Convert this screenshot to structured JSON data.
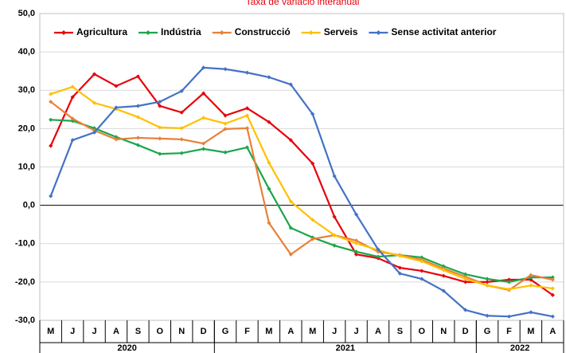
{
  "chart_data": {
    "type": "line",
    "title": "Taxa de variació interanual",
    "categories": [
      "M",
      "J",
      "J",
      "A",
      "S",
      "O",
      "N",
      "D",
      "G",
      "F",
      "M",
      "A",
      "M",
      "J",
      "J",
      "A",
      "S",
      "O",
      "N",
      "D",
      "G",
      "F",
      "M",
      "A"
    ],
    "year_groups": [
      {
        "label": "2020",
        "count": 8
      },
      {
        "label": "2021",
        "count": 12
      },
      {
        "label": "2022",
        "count": 4
      }
    ],
    "series": [
      {
        "name": "Agricultura",
        "color": "#e8000b",
        "values": [
          15.5,
          28.2,
          34.2,
          31.1,
          33.6,
          25.9,
          24.2,
          29.2,
          23.4,
          25.3,
          21.7,
          17.0,
          10.9,
          -3.0,
          -12.8,
          -13.8,
          -16.3,
          -17.1,
          -18.4,
          -20.0,
          -20.0,
          -19.4,
          -19.4,
          -23.4
        ]
      },
      {
        "name": "Indústria",
        "color": "#1aa64a",
        "values": [
          22.3,
          22.0,
          20.1,
          17.8,
          15.7,
          13.4,
          13.6,
          14.7,
          13.8,
          15.1,
          4.3,
          -5.9,
          -8.4,
          -10.5,
          -12.1,
          -13.4,
          -13.0,
          -13.6,
          -15.9,
          -18.0,
          -19.2,
          -20.0,
          -18.8,
          -18.8
        ]
      },
      {
        "name": "Construcció",
        "color": "#e8803a",
        "values": [
          27.0,
          22.6,
          19.5,
          17.2,
          17.6,
          17.4,
          17.2,
          16.1,
          19.9,
          20.1,
          -4.6,
          -12.8,
          -8.8,
          -7.8,
          -9.2,
          -12.1,
          -13.0,
          -14.2,
          -16.5,
          -18.6,
          -20.9,
          -22.1,
          -18.2,
          -19.4
        ]
      },
      {
        "name": "Serveis",
        "color": "#ffc000",
        "values": [
          29.0,
          30.9,
          26.7,
          25.1,
          23.0,
          20.3,
          20.1,
          22.8,
          21.3,
          23.4,
          11.1,
          1.0,
          -3.8,
          -7.8,
          -9.9,
          -11.7,
          -13.2,
          -14.6,
          -16.9,
          -19.2,
          -20.9,
          -21.9,
          -20.9,
          -21.7
        ]
      },
      {
        "name": "Sense activitat anterior",
        "color": "#4472c4",
        "values": [
          2.4,
          17.0,
          19.0,
          25.5,
          25.9,
          27.0,
          29.8,
          35.9,
          35.5,
          34.6,
          33.4,
          31.5,
          23.8,
          7.6,
          -2.4,
          -11.5,
          -17.8,
          -19.2,
          -22.3,
          -27.3,
          -28.8,
          -29.0,
          -27.9,
          -29.0
        ]
      }
    ],
    "ylim": [
      -30,
      50
    ],
    "yticks": [
      {
        "value": -30,
        "label": "-30,0"
      },
      {
        "value": -20,
        "label": "-20,0"
      },
      {
        "value": -10,
        "label": "-10,0"
      },
      {
        "value": 0,
        "label": "0,0"
      },
      {
        "value": 10,
        "label": "10,0"
      },
      {
        "value": 20,
        "label": "20,0"
      },
      {
        "value": 30,
        "label": "30,0"
      },
      {
        "value": 40,
        "label": "40,0"
      },
      {
        "value": 50,
        "label": "50,0"
      }
    ],
    "grid": true,
    "legend": "top-left"
  }
}
